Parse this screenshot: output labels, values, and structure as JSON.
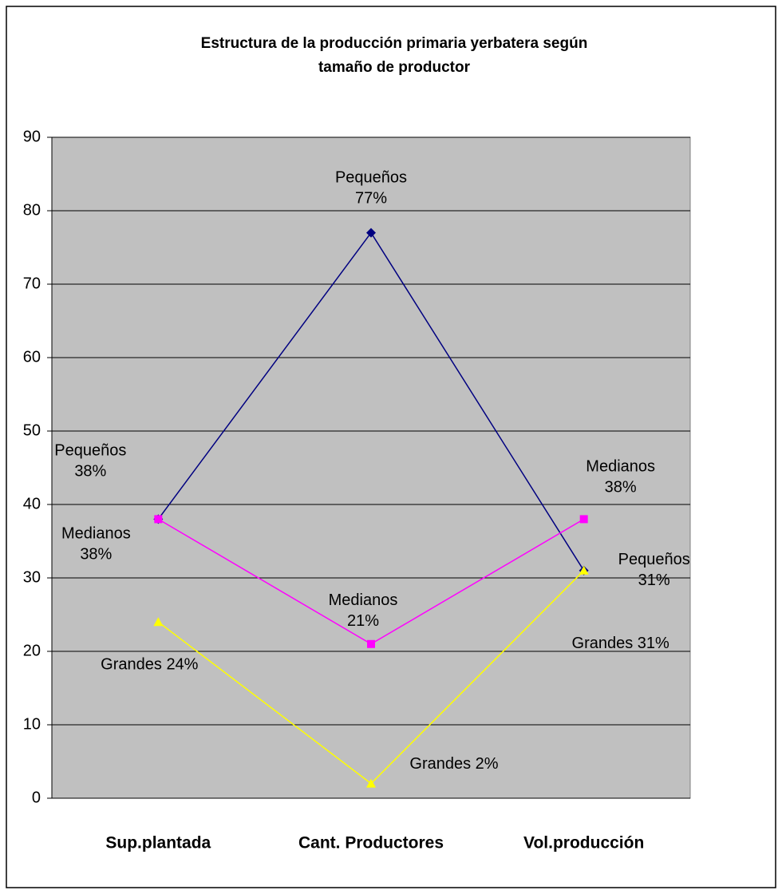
{
  "chart_data": {
    "type": "line",
    "title": "Estructura de la producción primaria yerbatera según\ntamaño de productor",
    "categories": [
      "Sup.plantada",
      "Cant. Productores",
      "Vol.producción"
    ],
    "series": [
      {
        "name": "Pequeños",
        "color": "#000080",
        "marker": "diamond",
        "values": [
          38,
          77,
          31
        ],
        "value_labels": [
          "Pequeños\n38%",
          "Pequeños\n77%",
          "Pequeños\n31%"
        ]
      },
      {
        "name": "Medianos",
        "color": "#ff00ff",
        "marker": "square",
        "values": [
          38,
          21,
          38
        ],
        "value_labels": [
          "Medianos\n38%",
          "Medianos\n21%",
          "Medianos\n38%"
        ]
      },
      {
        "name": "Grandes",
        "color": "#ffff00",
        "marker": "triangle",
        "values": [
          24,
          2,
          31
        ],
        "value_labels": [
          "Grandes 24%",
          "Grandes 2%",
          "Grandes 31%"
        ]
      }
    ],
    "ylim": [
      0,
      90
    ],
    "yticks": [
      0,
      10,
      20,
      30,
      40,
      50,
      60,
      70,
      80,
      90
    ],
    "grid": true
  }
}
